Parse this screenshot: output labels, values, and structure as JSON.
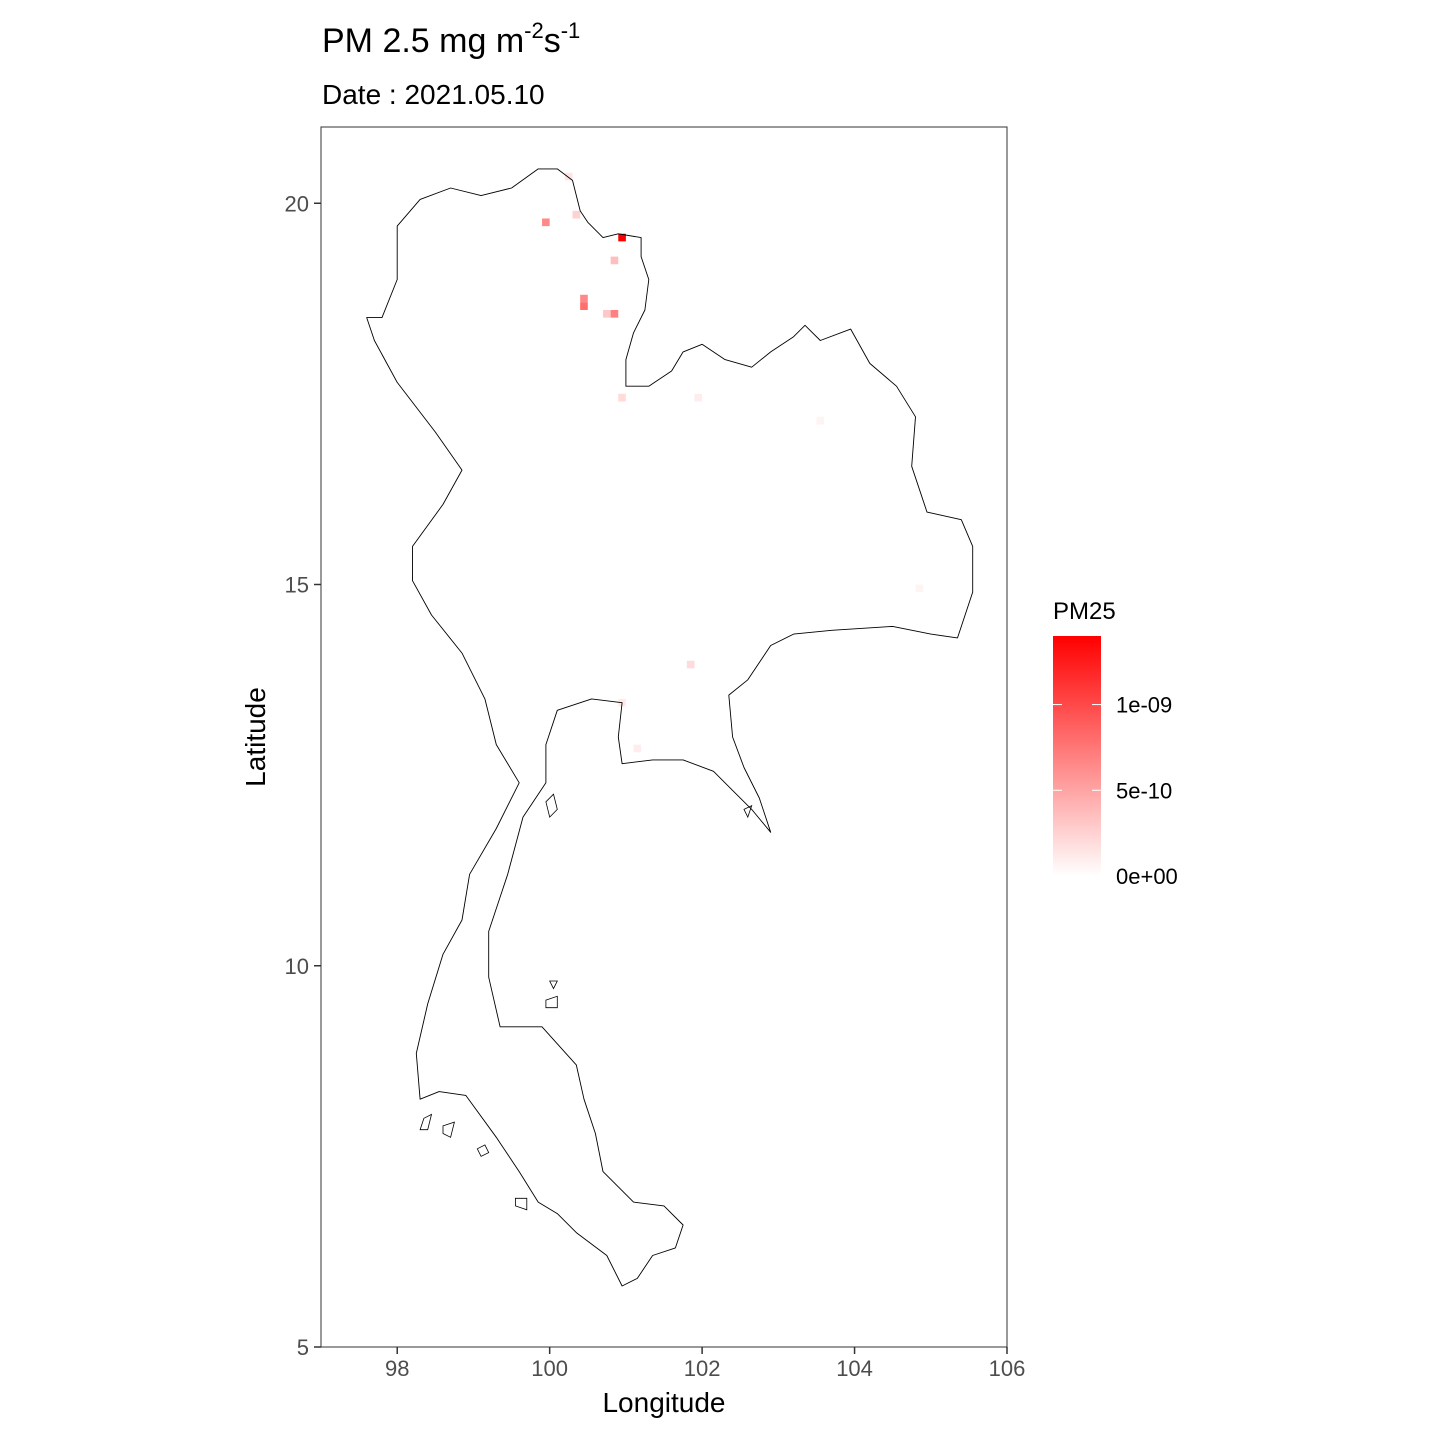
{
  "chart_data": {
    "type": "heatmap",
    "title": {
      "base": "PM 2.5 mg m",
      "sup1": "-2",
      "mid": "s",
      "sup2": "-1"
    },
    "subtitle": "Date : 2021.05.10",
    "xlabel": "Longitude",
    "ylabel": "Latitude",
    "xlim": [
      97,
      106
    ],
    "ylim": [
      5,
      21
    ],
    "x_ticks": [
      98,
      100,
      102,
      104,
      106
    ],
    "x_tick_labels": [
      "98",
      "100",
      "102",
      "104",
      "106"
    ],
    "y_ticks": [
      5,
      10,
      15,
      20
    ],
    "y_tick_labels": [
      "5",
      "10",
      "15",
      "20"
    ],
    "grid": false,
    "legend": {
      "title": "PM25",
      "placement": "right",
      "min": 0,
      "max": 1.4e-09,
      "breaks": [
        0,
        5e-10,
        1e-09
      ],
      "break_labels": [
        "0e+00",
        "5e-10",
        "1e-09"
      ],
      "low_color": "#ffffff",
      "high_color": "#ff0000"
    },
    "cells": [
      {
        "lon": 100.95,
        "lat": 19.55,
        "value": 1.4e-09
      },
      {
        "lon": 99.95,
        "lat": 19.75,
        "value": 6.5e-10
      },
      {
        "lon": 100.35,
        "lat": 19.85,
        "value": 2.5e-10
      },
      {
        "lon": 100.25,
        "lat": 20.35,
        "value": 1.5e-10
      },
      {
        "lon": 100.85,
        "lat": 19.25,
        "value": 3.5e-10
      },
      {
        "lon": 100.45,
        "lat": 18.75,
        "value": 6.5e-10
      },
      {
        "lon": 100.45,
        "lat": 18.65,
        "value": 8e-10
      },
      {
        "lon": 100.75,
        "lat": 18.55,
        "value": 3e-10
      },
      {
        "lon": 100.85,
        "lat": 18.55,
        "value": 7e-10
      },
      {
        "lon": 100.95,
        "lat": 17.45,
        "value": 2e-10
      },
      {
        "lon": 101.95,
        "lat": 17.45,
        "value": 1e-10
      },
      {
        "lon": 103.55,
        "lat": 17.15,
        "value": 6e-11
      },
      {
        "lon": 104.85,
        "lat": 14.95,
        "value": 6e-11
      },
      {
        "lon": 101.85,
        "lat": 13.95,
        "value": 2e-10
      },
      {
        "lon": 100.95,
        "lat": 13.45,
        "value": 1.2e-10
      },
      {
        "lon": 101.15,
        "lat": 12.85,
        "value": 1e-10
      }
    ],
    "boundary": [
      [
        98.3,
        20.05
      ],
      [
        98.7,
        20.2
      ],
      [
        99.1,
        20.1
      ],
      [
        99.5,
        20.2
      ],
      [
        99.85,
        20.45
      ],
      [
        100.1,
        20.45
      ],
      [
        100.3,
        20.3
      ],
      [
        100.4,
        19.9
      ],
      [
        100.5,
        19.75
      ],
      [
        100.7,
        19.55
      ],
      [
        100.9,
        19.6
      ],
      [
        101.2,
        19.55
      ],
      [
        101.2,
        19.3
      ],
      [
        101.3,
        19.0
      ],
      [
        101.25,
        18.6
      ],
      [
        101.1,
        18.3
      ],
      [
        101.0,
        17.95
      ],
      [
        101.0,
        17.6
      ],
      [
        101.3,
        17.6
      ],
      [
        101.6,
        17.8
      ],
      [
        101.75,
        18.05
      ],
      [
        102.0,
        18.15
      ],
      [
        102.3,
        17.95
      ],
      [
        102.65,
        17.85
      ],
      [
        102.9,
        18.05
      ],
      [
        103.2,
        18.25
      ],
      [
        103.35,
        18.4
      ],
      [
        103.55,
        18.2
      ],
      [
        103.95,
        18.35
      ],
      [
        104.2,
        17.9
      ],
      [
        104.55,
        17.6
      ],
      [
        104.8,
        17.2
      ],
      [
        104.75,
        16.55
      ],
      [
        104.95,
        15.95
      ],
      [
        105.4,
        15.85
      ],
      [
        105.55,
        15.5
      ],
      [
        105.55,
        14.9
      ],
      [
        105.35,
        14.3
      ],
      [
        105.0,
        14.35
      ],
      [
        104.5,
        14.45
      ],
      [
        103.7,
        14.4
      ],
      [
        103.2,
        14.35
      ],
      [
        102.9,
        14.2
      ],
      [
        102.6,
        13.75
      ],
      [
        102.35,
        13.55
      ],
      [
        102.4,
        13.0
      ],
      [
        102.55,
        12.6
      ],
      [
        102.75,
        12.2
      ],
      [
        102.9,
        11.75
      ],
      [
        102.65,
        12.05
      ],
      [
        102.4,
        12.3
      ],
      [
        102.15,
        12.55
      ],
      [
        101.75,
        12.7
      ],
      [
        101.35,
        12.7
      ],
      [
        100.95,
        12.65
      ],
      [
        100.9,
        13.0
      ],
      [
        100.95,
        13.45
      ],
      [
        100.55,
        13.5
      ],
      [
        100.1,
        13.35
      ],
      [
        99.95,
        12.9
      ],
      [
        99.95,
        12.4
      ],
      [
        99.65,
        11.95
      ],
      [
        99.45,
        11.2
      ],
      [
        99.35,
        10.9
      ],
      [
        99.2,
        10.45
      ],
      [
        99.2,
        9.85
      ],
      [
        99.35,
        9.2
      ],
      [
        99.9,
        9.2
      ],
      [
        100.35,
        8.7
      ],
      [
        100.45,
        8.25
      ],
      [
        100.6,
        7.8
      ],
      [
        100.7,
        7.3
      ],
      [
        101.1,
        6.9
      ],
      [
        101.5,
        6.85
      ],
      [
        101.75,
        6.6
      ],
      [
        101.65,
        6.3
      ],
      [
        101.35,
        6.2
      ],
      [
        101.15,
        5.9
      ],
      [
        100.95,
        5.8
      ],
      [
        100.75,
        6.2
      ],
      [
        100.35,
        6.5
      ],
      [
        100.1,
        6.75
      ],
      [
        99.85,
        6.9
      ],
      [
        99.6,
        7.3
      ],
      [
        99.3,
        7.75
      ],
      [
        98.9,
        8.3
      ],
      [
        98.55,
        8.35
      ],
      [
        98.3,
        8.25
      ],
      [
        98.25,
        8.85
      ],
      [
        98.4,
        9.5
      ],
      [
        98.6,
        10.15
      ],
      [
        98.85,
        10.6
      ],
      [
        98.95,
        11.2
      ],
      [
        99.3,
        11.8
      ],
      [
        99.6,
        12.4
      ],
      [
        99.3,
        12.9
      ],
      [
        99.15,
        13.5
      ],
      [
        98.85,
        14.1
      ],
      [
        98.45,
        14.6
      ],
      [
        98.2,
        15.05
      ],
      [
        98.2,
        15.5
      ],
      [
        98.6,
        16.05
      ],
      [
        98.85,
        16.5
      ],
      [
        98.5,
        17.0
      ],
      [
        98.0,
        17.65
      ],
      [
        97.7,
        18.2
      ],
      [
        97.6,
        18.5
      ],
      [
        97.8,
        18.5
      ],
      [
        98.0,
        19.0
      ],
      [
        98.0,
        19.7
      ],
      [
        98.3,
        20.05
      ]
    ],
    "islands": [
      [
        [
          99.95,
          12.15
        ],
        [
          100.05,
          12.25
        ],
        [
          100.1,
          12.05
        ],
        [
          100.0,
          11.95
        ],
        [
          99.95,
          12.15
        ]
      ],
      [
        [
          98.35,
          8.0
        ],
        [
          98.45,
          8.05
        ],
        [
          98.4,
          7.85
        ],
        [
          98.3,
          7.85
        ],
        [
          98.35,
          8.0
        ]
      ],
      [
        [
          99.95,
          9.55
        ],
        [
          100.1,
          9.6
        ],
        [
          100.1,
          9.45
        ],
        [
          99.95,
          9.45
        ],
        [
          99.95,
          9.55
        ]
      ],
      [
        [
          100.0,
          9.8
        ],
        [
          100.1,
          9.8
        ],
        [
          100.05,
          9.7
        ],
        [
          100.0,
          9.8
        ]
      ],
      [
        [
          99.05,
          7.6
        ],
        [
          99.15,
          7.65
        ],
        [
          99.2,
          7.55
        ],
        [
          99.1,
          7.5
        ],
        [
          99.05,
          7.6
        ]
      ],
      [
        [
          99.55,
          6.95
        ],
        [
          99.7,
          6.95
        ],
        [
          99.7,
          6.8
        ],
        [
          99.55,
          6.85
        ],
        [
          99.55,
          6.95
        ]
      ],
      [
        [
          98.6,
          7.9
        ],
        [
          98.75,
          7.95
        ],
        [
          98.7,
          7.75
        ],
        [
          98.6,
          7.8
        ],
        [
          98.6,
          7.9
        ]
      ],
      [
        [
          102.55,
          12.05
        ],
        [
          102.65,
          12.1
        ],
        [
          102.6,
          11.95
        ],
        [
          102.55,
          12.05
        ]
      ]
    ]
  }
}
